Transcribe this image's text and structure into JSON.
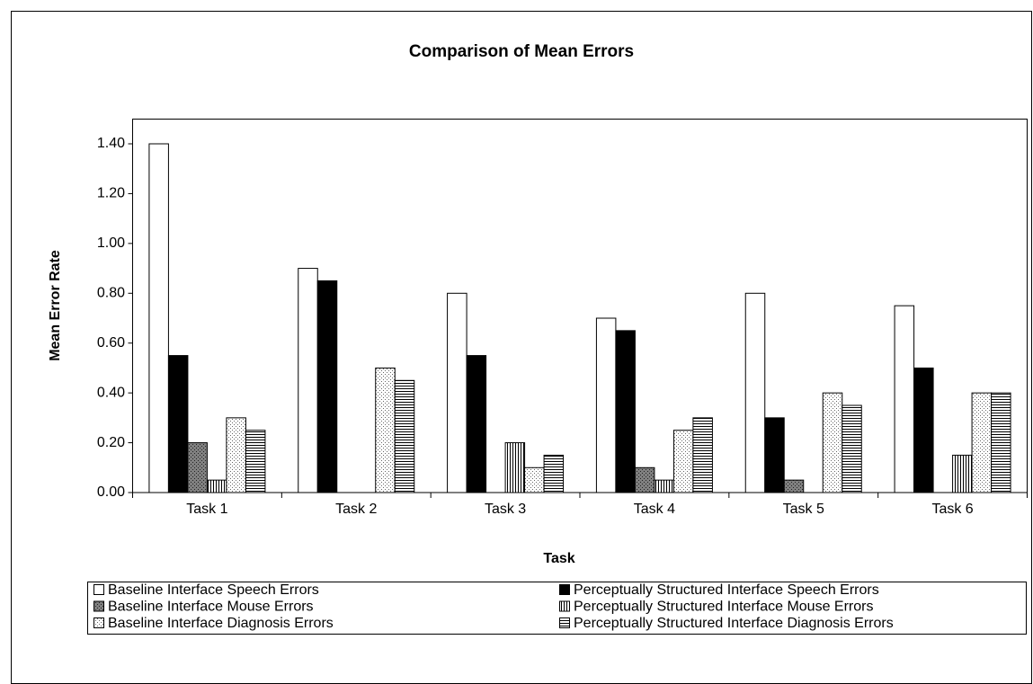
{
  "chart_data": {
    "type": "bar",
    "title": "Comparison of Mean Errors",
    "x_label": "Task",
    "y_label": "Mean Error Rate",
    "categories": [
      "Task 1",
      "Task 2",
      "Task 3",
      "Task 4",
      "Task 5",
      "Task 6"
    ],
    "series": [
      {
        "name": "Baseline Interface Speech Errors",
        "color": "#ffffff",
        "pattern": "solid",
        "values": [
          1.4,
          0.9,
          0.8,
          0.7,
          0.8,
          0.75
        ]
      },
      {
        "name": "Perceptually Structured Interface Speech Errors",
        "color": "#000000",
        "pattern": "solid",
        "values": [
          0.55,
          0.85,
          0.55,
          0.65,
          0.3,
          0.5
        ]
      },
      {
        "name": "Baseline Interface Mouse Errors",
        "color": "#808080",
        "pattern": "dots-dark",
        "values": [
          0.2,
          0,
          0,
          0.1,
          0.05,
          0
        ]
      },
      {
        "name": "Perceptually Structured Interface Mouse Errors",
        "color": "#ffffff",
        "pattern": "vertical",
        "values": [
          0.05,
          0,
          0.2,
          0.05,
          0,
          0.15
        ]
      },
      {
        "name": "Baseline Interface Diagnosis Errors",
        "color": "#ffffff",
        "pattern": "dots-light",
        "values": [
          0.3,
          0.5,
          0.1,
          0.25,
          0.4,
          0.4
        ]
      },
      {
        "name": "Perceptually Structured Interface Diagnosis Errors",
        "color": "#ffffff",
        "pattern": "horizontal",
        "values": [
          0.25,
          0.45,
          0.15,
          0.3,
          0.35,
          0.4
        ]
      }
    ],
    "ylim": [
      0,
      1.4
    ],
    "yticks": [
      {
        "value": 0,
        "label": "0.00"
      },
      {
        "value": 0.2,
        "label": "0.20"
      },
      {
        "value": 0.4,
        "label": "0.40"
      },
      {
        "value": 0.6,
        "label": "0.60"
      },
      {
        "value": 0.8,
        "label": "0.80"
      },
      {
        "value": 1.0,
        "label": "1.00"
      },
      {
        "value": 1.2,
        "label": "1.20"
      },
      {
        "value": 1.4,
        "label": "1.40"
      }
    ],
    "legend": "bottom",
    "grid": false
  }
}
